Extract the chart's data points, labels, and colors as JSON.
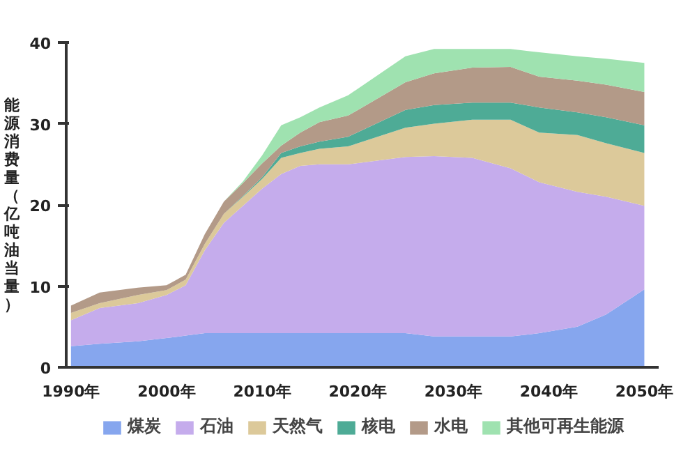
{
  "chart_data": {
    "type": "area",
    "stacked": true,
    "ylabel": "能源消费量（亿吨油当量）",
    "x": [
      1990,
      1993,
      1997,
      2000,
      2002,
      2004,
      2006,
      2008,
      2010,
      2012,
      2014,
      2016,
      2019,
      2025,
      2028,
      2032,
      2036,
      2039,
      2043,
      2046,
      2050
    ],
    "series": [
      {
        "name": "煤炭",
        "color": "#86a6ee",
        "values": [
          2.6,
          2.9,
          3.2,
          3.6,
          3.9,
          4.2,
          4.2,
          4.2,
          4.2,
          4.2,
          4.2,
          4.2,
          4.2,
          4.2,
          3.8,
          3.8,
          3.8,
          4.2,
          5.0,
          6.5,
          9.6
        ]
      },
      {
        "name": "石油",
        "color": "#c5acec",
        "values": [
          3.2,
          4.4,
          4.7,
          5.3,
          6.2,
          10.2,
          13.6,
          15.7,
          17.8,
          19.6,
          20.6,
          20.8,
          20.8,
          21.7,
          22.2,
          22.0,
          20.7,
          18.6,
          16.6,
          14.5,
          10.3
        ]
      },
      {
        "name": "天然气",
        "color": "#dcc99a",
        "values": [
          0.9,
          0.6,
          1.0,
          0.6,
          0.7,
          0.8,
          1.1,
          1.1,
          1.2,
          2.0,
          1.6,
          1.9,
          2.2,
          3.6,
          4.0,
          4.7,
          6.0,
          6.1,
          7.0,
          6.6,
          6.5
        ]
      },
      {
        "name": "核电",
        "color": "#4eab96",
        "values": [
          0,
          0,
          0,
          0,
          0,
          0,
          0,
          0.1,
          0.2,
          0.6,
          0.8,
          0.9,
          1.2,
          2.2,
          2.3,
          2.1,
          2.1,
          3.1,
          2.8,
          3.2,
          3.4
        ]
      },
      {
        "name": "水电",
        "color": "#b39a88",
        "values": [
          0.9,
          1.3,
          0.9,
          0.6,
          0.6,
          1.2,
          1.5,
          1.6,
          1.7,
          0.9,
          1.7,
          2.4,
          2.6,
          3.4,
          3.9,
          4.3,
          4.4,
          3.8,
          3.9,
          4.0,
          4.1
        ]
      },
      {
        "name": "其他可再生能源",
        "color": "#9fe2b0",
        "values": [
          0,
          0,
          0,
          0,
          0,
          0,
          0,
          0.2,
          1.0,
          2.5,
          1.9,
          1.8,
          2.5,
          3.2,
          3.0,
          2.3,
          2.2,
          3.0,
          3.0,
          3.2,
          3.6
        ]
      }
    ],
    "xlim": [
      1989.5,
      2051.5
    ],
    "xticks": [
      {
        "value": 1990,
        "label": "1990年"
      },
      {
        "value": 2000,
        "label": "2000年"
      },
      {
        "value": 2010,
        "label": "2010年"
      },
      {
        "value": 2020,
        "label": "2020年"
      },
      {
        "value": 2030,
        "label": "2030年"
      },
      {
        "value": 2040,
        "label": "2040年"
      },
      {
        "value": 2050,
        "label": "2050年"
      }
    ],
    "ylim": [
      0,
      40
    ],
    "yticks": [
      0,
      10,
      20,
      30,
      40
    ],
    "grid": false,
    "legend": "bottom"
  }
}
